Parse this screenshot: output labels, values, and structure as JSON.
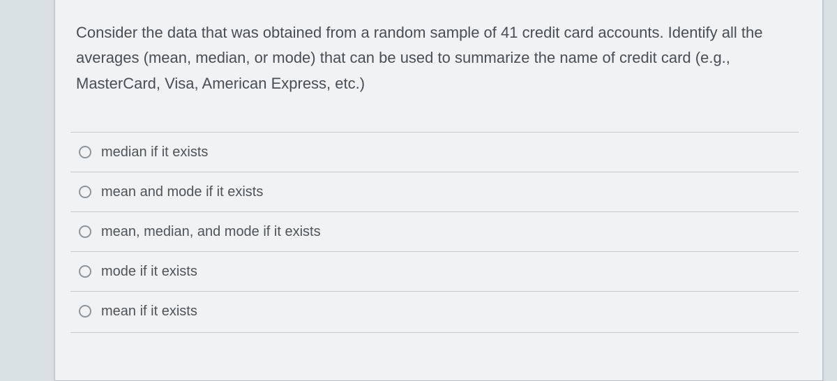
{
  "colors": {
    "page_bg": "#d9e0e3",
    "card_bg": "#f1f2f3",
    "card_border": "#b8bdc0",
    "rule": "#c6cace",
    "text": "#4a4e52",
    "option_text": "#4f5356",
    "radio_border": "#8e9498"
  },
  "typography": {
    "question_fontsize": 22,
    "option_fontsize": 20,
    "question_lineheight": 1.65
  },
  "question": {
    "text": "Consider the data that was obtained from a random sample of 41 credit card accounts. Identify all the averages (mean, median, or mode) that can be used to summarize the name of credit card (e.g., MasterCard, Visa, American Express, etc.)"
  },
  "options": [
    {
      "label": "median if it exists",
      "selected": false
    },
    {
      "label": "mean and mode if it exists",
      "selected": false
    },
    {
      "label": "mean, median, and mode if it exists",
      "selected": false
    },
    {
      "label": "mode if it exists",
      "selected": false
    },
    {
      "label": "mean if it exists",
      "selected": false
    }
  ]
}
